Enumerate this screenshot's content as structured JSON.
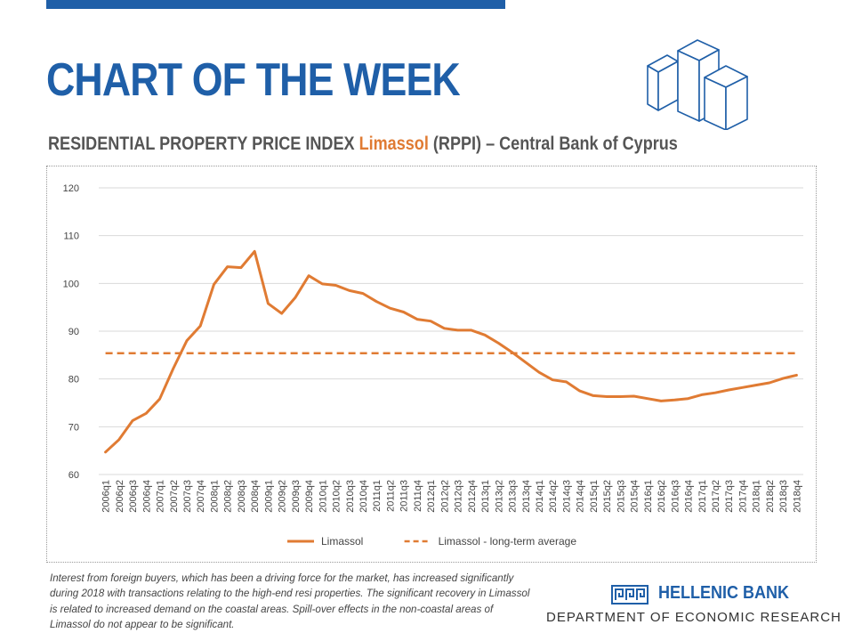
{
  "header": {
    "title": "CHART OF THE WEEK",
    "subtitle_part1": "RESIDENTIAL PROPERTY PRICE INDEX ",
    "subtitle_accent": "Limassol",
    "subtitle_part2": " (RPPI) – Central Bank of Cyprus"
  },
  "colors": {
    "brand_blue": "#1f5fa8",
    "accent_orange": "#e07b33",
    "text_gray": "#555555"
  },
  "icons": {
    "header_graphic": "buildings-icon",
    "bank_logo": "greek-key-logo-icon"
  },
  "chart_data": {
    "type": "line",
    "ylim": [
      60,
      120
    ],
    "yticks": [
      60,
      70,
      80,
      90,
      100,
      110,
      120
    ],
    "grid": "horizontal",
    "legend_position": "bottom",
    "categories": [
      "2006q1",
      "2006q2",
      "2006q3",
      "2006q4",
      "2007q1",
      "2007q2",
      "2007q3",
      "2007q4",
      "2008q1",
      "2008q2",
      "2008q3",
      "2008q4",
      "2009q1",
      "2009q2",
      "2009q3",
      "2009q4",
      "2010q1",
      "2010q2",
      "2010q3",
      "2010q4",
      "2011q1",
      "2011q2",
      "2011q3",
      "2011q4",
      "2012q1",
      "2012q2",
      "2012q3",
      "2012q4",
      "2013q1",
      "2013q2",
      "2013q3",
      "2013q4",
      "2014q1",
      "2014q2",
      "2014q3",
      "2014q4",
      "2015q1",
      "2015q2",
      "2015q3",
      "2015q4",
      "2016q1",
      "2016q2",
      "2016q3",
      "2016q4",
      "2017q1",
      "2017q2",
      "2017q3",
      "2017q4",
      "2018q1",
      "2018q2",
      "2018q3",
      "2018q4"
    ],
    "series": [
      {
        "name": "Limassol",
        "color": "#e07b33",
        "style": "solid",
        "values": [
          64.7,
          67.3,
          71.3,
          72.8,
          75.8,
          82.2,
          88.0,
          91.1,
          99.8,
          103.5,
          103.3,
          106.7,
          95.8,
          93.7,
          97.0,
          101.6,
          99.9,
          99.6,
          98.5,
          97.9,
          96.2,
          94.8,
          94.0,
          92.5,
          92.1,
          90.6,
          90.2,
          90.2,
          89.2,
          87.5,
          85.6,
          83.5,
          81.4,
          79.8,
          79.4,
          77.5,
          76.5,
          76.3,
          76.3,
          76.4,
          75.9,
          75.4,
          75.6,
          75.9,
          76.7,
          77.1,
          77.7,
          78.2,
          78.7,
          79.2,
          80.1,
          80.8
        ]
      },
      {
        "name": "Limassol - long-term average",
        "color": "#e07b33",
        "style": "dashed",
        "values": [
          85.4,
          85.4,
          85.4,
          85.4,
          85.4,
          85.4,
          85.4,
          85.4,
          85.4,
          85.4,
          85.4,
          85.4,
          85.4,
          85.4,
          85.4,
          85.4,
          85.4,
          85.4,
          85.4,
          85.4,
          85.4,
          85.4,
          85.4,
          85.4,
          85.4,
          85.4,
          85.4,
          85.4,
          85.4,
          85.4,
          85.4,
          85.4,
          85.4,
          85.4,
          85.4,
          85.4,
          85.4,
          85.4,
          85.4,
          85.4,
          85.4,
          85.4,
          85.4,
          85.4,
          85.4,
          85.4,
          85.4,
          85.4,
          85.4,
          85.4,
          85.4,
          85.4
        ]
      }
    ]
  },
  "footnote": "Interest from foreign buyers, which has been a driving force for the market, has increased significantly during 2018 with transactions relating to the high-end resi properties. The significant recovery in Limassol is related to increased demand on the coastal areas. Spill-over effects in the non-coastal areas of Limassol do not appear to be significant.",
  "bank": {
    "name": "HELLENIC BANK",
    "department": "DEPARTMENT OF ECONOMIC RESEARCH"
  }
}
